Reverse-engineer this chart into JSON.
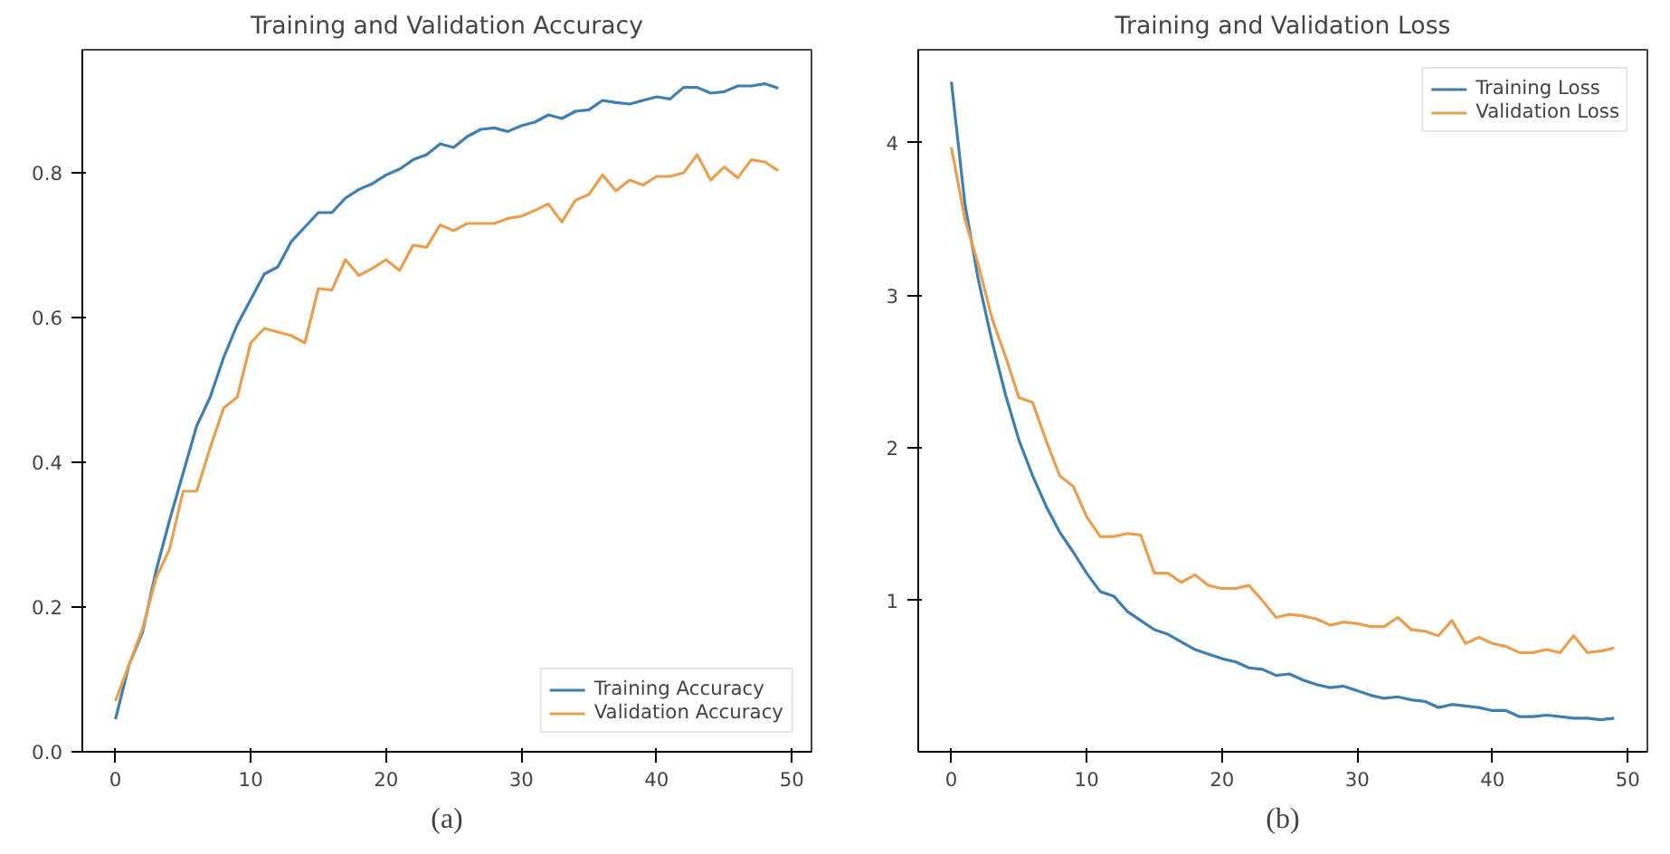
{
  "chart_data": [
    {
      "type": "line",
      "title": "Training and Validation Accuracy",
      "x": [
        0,
        1,
        2,
        3,
        4,
        5,
        6,
        7,
        8,
        9,
        10,
        11,
        12,
        13,
        14,
        15,
        16,
        17,
        18,
        19,
        20,
        21,
        22,
        23,
        24,
        25,
        26,
        27,
        28,
        29,
        30,
        31,
        32,
        33,
        34,
        35,
        36,
        37,
        38,
        39,
        40,
        41,
        42,
        43,
        44,
        45,
        46,
        47,
        48,
        49
      ],
      "series": [
        {
          "name": "Training Accuracy",
          "color": "#3f7fb0",
          "values": [
            0.045,
            0.12,
            0.165,
            0.25,
            0.32,
            0.385,
            0.45,
            0.49,
            0.545,
            0.59,
            0.625,
            0.66,
            0.67,
            0.705,
            0.725,
            0.745,
            0.745,
            0.765,
            0.777,
            0.785,
            0.797,
            0.805,
            0.818,
            0.825,
            0.84,
            0.835,
            0.85,
            0.86,
            0.862,
            0.857,
            0.865,
            0.87,
            0.88,
            0.875,
            0.885,
            0.887,
            0.9,
            0.897,
            0.895,
            0.9,
            0.905,
            0.902,
            0.918,
            0.918,
            0.91,
            0.912,
            0.92,
            0.92,
            0.923,
            0.917
          ]
        },
        {
          "name": "Validation Accuracy",
          "color": "#e8a050",
          "values": [
            0.07,
            0.12,
            0.17,
            0.24,
            0.28,
            0.36,
            0.36,
            0.42,
            0.475,
            0.49,
            0.565,
            0.585,
            0.58,
            0.575,
            0.565,
            0.64,
            0.638,
            0.68,
            0.658,
            0.668,
            0.68,
            0.665,
            0.7,
            0.697,
            0.728,
            0.72,
            0.73,
            0.73,
            0.73,
            0.737,
            0.74,
            0.748,
            0.757,
            0.732,
            0.762,
            0.77,
            0.797,
            0.775,
            0.79,
            0.783,
            0.795,
            0.795,
            0.8,
            0.825,
            0.79,
            0.808,
            0.793,
            0.818,
            0.815,
            0.803
          ]
        }
      ],
      "xlim": [
        -2.45,
        51.45
      ],
      "ylim": [
        0.0,
        0.97
      ],
      "xticks": [
        0,
        10,
        20,
        30,
        40,
        50
      ],
      "yticks": [
        {
          "value": 0,
          "label": "0.0"
        },
        0.2,
        0.4,
        0.6,
        0.8
      ],
      "grid": false,
      "legend": "bottom right",
      "annotations": [
        "(a)"
      ]
    },
    {
      "type": "line",
      "title": "Training and Validation Loss",
      "x": [
        0,
        1,
        2,
        3,
        4,
        5,
        6,
        7,
        8,
        9,
        10,
        11,
        12,
        13,
        14,
        15,
        16,
        17,
        18,
        19,
        20,
        21,
        22,
        23,
        24,
        25,
        26,
        27,
        28,
        29,
        30,
        31,
        32,
        33,
        34,
        35,
        36,
        37,
        38,
        39,
        40,
        41,
        42,
        43,
        44,
        45,
        46,
        47,
        48,
        49
      ],
      "series": [
        {
          "name": "Training Loss",
          "color": "#3f7fb0",
          "values": [
            4.4,
            3.6,
            3.1,
            2.7,
            2.35,
            2.05,
            1.82,
            1.62,
            1.45,
            1.32,
            1.18,
            1.06,
            1.03,
            0.93,
            0.87,
            0.81,
            0.78,
            0.73,
            0.68,
            0.65,
            0.62,
            0.6,
            0.56,
            0.55,
            0.51,
            0.52,
            0.48,
            0.45,
            0.43,
            0.44,
            0.41,
            0.38,
            0.36,
            0.37,
            0.35,
            0.34,
            0.3,
            0.32,
            0.31,
            0.3,
            0.28,
            0.28,
            0.24,
            0.24,
            0.25,
            0.24,
            0.23,
            0.23,
            0.22,
            0.23
          ]
        },
        {
          "name": "Validation Loss",
          "color": "#e8a050",
          "values": [
            3.97,
            3.5,
            3.2,
            2.85,
            2.6,
            2.33,
            2.3,
            2.05,
            1.82,
            1.75,
            1.55,
            1.42,
            1.42,
            1.44,
            1.43,
            1.18,
            1.18,
            1.12,
            1.17,
            1.1,
            1.08,
            1.08,
            1.1,
            1.0,
            0.89,
            0.91,
            0.9,
            0.88,
            0.84,
            0.86,
            0.85,
            0.83,
            0.83,
            0.89,
            0.81,
            0.8,
            0.77,
            0.87,
            0.72,
            0.76,
            0.72,
            0.7,
            0.66,
            0.66,
            0.68,
            0.66,
            0.77,
            0.66,
            0.67,
            0.69
          ]
        }
      ],
      "xlim": [
        -2.45,
        51.45
      ],
      "ylim": [
        0.01,
        4.61
      ],
      "xticks": [
        0,
        10,
        20,
        30,
        40,
        50
      ],
      "yticks": [
        1,
        2,
        3,
        4
      ],
      "grid": false,
      "legend": "top right",
      "annotations": [
        "(b)"
      ]
    }
  ]
}
